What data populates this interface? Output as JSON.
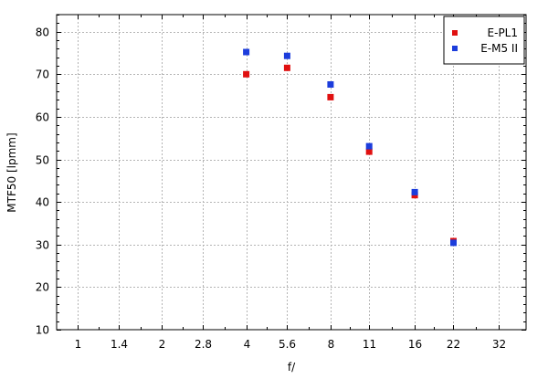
{
  "chart_data": {
    "type": "scatter",
    "title": "",
    "xlabel": "f/",
    "ylabel": "MTF50 [lpmm]",
    "x_scale": "log2",
    "x_ticks": [
      "1",
      "1.4",
      "2",
      "2.8",
      "4",
      "5.6",
      "8",
      "11",
      "16",
      "22",
      "32"
    ],
    "x_tick_values": [
      1,
      1.4,
      2,
      2.8,
      4,
      5.6,
      8,
      11,
      16,
      22,
      32
    ],
    "xlim": [
      0.84,
      40
    ],
    "y_ticks": [
      10,
      20,
      30,
      40,
      50,
      60,
      70,
      80
    ],
    "ylim": [
      10,
      84
    ],
    "grid": true,
    "legend_position": "top-right",
    "series": [
      {
        "name": "E-PL1",
        "color": "#e01010",
        "x": [
          4,
          5.6,
          8,
          11,
          16,
          22
        ],
        "y": [
          70.0,
          71.5,
          64.6,
          51.8,
          41.6,
          30.8
        ]
      },
      {
        "name": "E-M5 II",
        "color": "#1c3ddc",
        "x": [
          4,
          5.6,
          8,
          11,
          16,
          22
        ],
        "y": [
          75.2,
          74.3,
          67.6,
          53.1,
          42.3,
          30.4
        ]
      }
    ]
  }
}
